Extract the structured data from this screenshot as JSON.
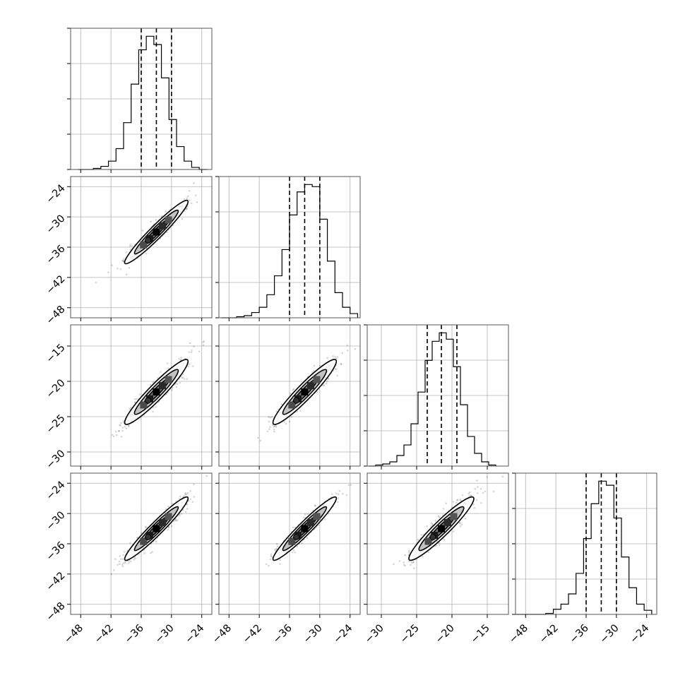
{
  "chart_data": {
    "type": "corner",
    "parameters": 4,
    "grid": true,
    "quantile_lines": "dashed",
    "axes": [
      {
        "range": [
          -50,
          -22
        ],
        "ticks": [
          -48,
          -42,
          -36,
          -30,
          -24
        ],
        "tick_labels": [
          "−48",
          "−42",
          "−36",
          "−30",
          "−24"
        ]
      },
      {
        "range": [
          -50,
          -22
        ],
        "ticks": [
          -48,
          -42,
          -36,
          -30,
          -24
        ],
        "tick_labels": [
          "−48",
          "−42",
          "−36",
          "−30",
          "−24"
        ]
      },
      {
        "range": [
          -32,
          -12
        ],
        "ticks": [
          -30,
          -25,
          -20,
          -15
        ],
        "tick_labels": [
          "−30",
          "−25",
          "−20",
          "−15"
        ]
      },
      {
        "range": [
          -50,
          -22
        ],
        "ticks": [
          -48,
          -42,
          -36,
          -30,
          -24
        ],
        "tick_labels": [
          "−48",
          "−42",
          "−36",
          "−30",
          "−24"
        ]
      }
    ],
    "marginals": [
      {
        "param": 0,
        "quantiles": [
          -36.0,
          -33.0,
          -30.0
        ],
        "bins": [
          -48.5,
          -47,
          -45.5,
          -44,
          -42.5,
          -41,
          -39.5,
          -38,
          -36.5,
          -35,
          -33.5,
          -32,
          -30.5,
          -29,
          -27.5,
          -26,
          -24.5,
          -23
        ],
        "counts": [
          0,
          0,
          1,
          3,
          8,
          20,
          45,
          82,
          115,
          128,
          120,
          88,
          48,
          22,
          8,
          2,
          0
        ]
      },
      {
        "param": 1,
        "quantiles": [
          -36.0,
          -33.0,
          -30.0
        ],
        "bins": [
          -49.5,
          -48,
          -46.5,
          -45,
          -43.5,
          -42,
          -40.5,
          -39,
          -37.5,
          -36,
          -34.5,
          -33,
          -31.5,
          -30,
          -28.5,
          -27,
          -25.5,
          -24,
          -22.5
        ],
        "counts": [
          0,
          0,
          1,
          2,
          5,
          10,
          22,
          40,
          65,
          98,
          120,
          127,
          125,
          94,
          54,
          24,
          10,
          4
        ]
      },
      {
        "param": 2,
        "quantiles": [
          -23.5,
          -21.5,
          -19.3
        ],
        "bins": [
          -31.8,
          -30.8,
          -29.8,
          -28.8,
          -27.8,
          -26.8,
          -25.8,
          -24.8,
          -23.8,
          -22.8,
          -21.8,
          -20.8,
          -19.8,
          -18.8,
          -17.8,
          -16.8,
          -15.8,
          -14.8,
          -13.8
        ],
        "counts": [
          0,
          1,
          2,
          4,
          10,
          20,
          40,
          70,
          100,
          118,
          126,
          120,
          94,
          58,
          28,
          12,
          4,
          1
        ]
      },
      {
        "param": 3,
        "quantiles": [
          -36.0,
          -33.0,
          -30.0
        ],
        "bins": [
          -50,
          -48.5,
          -47,
          -45.5,
          -44,
          -42.5,
          -41,
          -39.5,
          -38,
          -36.5,
          -35,
          -33.5,
          -32,
          -30.5,
          -29,
          -27.5,
          -26,
          -24.5,
          -23
        ],
        "counts": [
          0,
          0,
          0,
          0,
          1,
          5,
          10,
          20,
          40,
          74,
          108,
          130,
          126,
          94,
          56,
          26,
          10,
          4
        ]
      }
    ],
    "joint": [
      {
        "x": 0,
        "y": 1,
        "center": [
          -33,
          -33
        ],
        "sd": [
          3.0,
          3.0
        ],
        "rho": 0.95
      },
      {
        "x": 0,
        "y": 2,
        "center": [
          -33,
          -21.5
        ],
        "sd": [
          3.0,
          2.2
        ],
        "rho": 0.93
      },
      {
        "x": 1,
        "y": 2,
        "center": [
          -33,
          -21.5
        ],
        "sd": [
          3.0,
          2.2
        ],
        "rho": 0.93
      },
      {
        "x": 0,
        "y": 3,
        "center": [
          -33,
          -33
        ],
        "sd": [
          3.0,
          3.0
        ],
        "rho": 0.95
      },
      {
        "x": 1,
        "y": 3,
        "center": [
          -33,
          -33
        ],
        "sd": [
          3.0,
          3.0
        ],
        "rho": 0.95
      },
      {
        "x": 2,
        "y": 3,
        "center": [
          -21.5,
          -33
        ],
        "sd": [
          2.2,
          3.0
        ],
        "rho": 0.93
      }
    ]
  }
}
